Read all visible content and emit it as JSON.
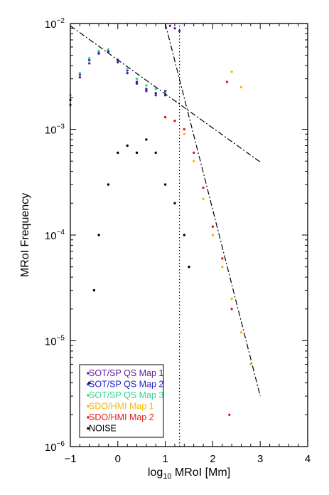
{
  "chart_data": {
    "type": "scatter",
    "xlabel_prefix": "log",
    "xlabel_sub": "10",
    "xlabel_suffix": " MRoI [Mm]",
    "ylabel": "MRoI Frequency",
    "xlim": [
      -1,
      4
    ],
    "ylim": [
      1e-06,
      0.01
    ],
    "yscale": "log",
    "x_ticks": [
      -1,
      0,
      1,
      2,
      3,
      4
    ],
    "x_tick_labels": [
      "−1",
      "0",
      "1",
      "2",
      "3",
      "4"
    ],
    "y_ticks": [
      {
        "mantissa": "10",
        "exponent": "−6",
        "value": 1e-06
      },
      {
        "mantissa": "10",
        "exponent": "−5",
        "value": 1e-05
      },
      {
        "mantissa": "10",
        "exponent": "−4",
        "value": 0.0001
      },
      {
        "mantissa": "10",
        "exponent": "−3",
        "value": 0.001
      },
      {
        "mantissa": "10",
        "exponent": "−2",
        "value": 0.01
      }
    ],
    "grid": false,
    "legend_position": "bottom-left",
    "series": [
      {
        "name": "SOT/SP QS Map 1",
        "color": "#6a1a9a",
        "points": [
          [
            -1.0,
            0.0017
          ],
          [
            -0.8,
            0.0031
          ],
          [
            -0.6,
            0.0042
          ],
          [
            -0.4,
            0.0052
          ],
          [
            -0.2,
            0.0054
          ],
          [
            0.0,
            0.0043
          ],
          [
            0.2,
            0.0034
          ],
          [
            0.4,
            0.0027
          ],
          [
            0.6,
            0.0023
          ],
          [
            0.8,
            0.0021
          ],
          [
            1.0,
            0.0023
          ],
          [
            1.1,
            0.0095
          ],
          [
            1.2,
            0.009
          ],
          [
            1.3,
            0.0085
          ]
        ]
      },
      {
        "name": "SOT/SP QS Map 2",
        "color": "#2020c8",
        "points": [
          [
            -1.0,
            0.0019
          ],
          [
            -0.8,
            0.0033
          ],
          [
            -0.6,
            0.0045
          ],
          [
            -0.4,
            0.0054
          ],
          [
            -0.2,
            0.0055
          ],
          [
            0.0,
            0.0045
          ],
          [
            0.2,
            0.0036
          ],
          [
            0.4,
            0.0028
          ],
          [
            0.6,
            0.0024
          ],
          [
            0.8,
            0.0022
          ],
          [
            1.0,
            0.0021
          ]
        ]
      },
      {
        "name": "SOT/SP QS Map 3",
        "color": "#30d890",
        "points": [
          [
            -1.0,
            0.0021
          ],
          [
            -0.8,
            0.0034
          ],
          [
            -0.6,
            0.0047
          ],
          [
            -0.4,
            0.0055
          ],
          [
            -0.2,
            0.0057
          ],
          [
            0.0,
            0.0046
          ],
          [
            0.2,
            0.0037
          ],
          [
            0.4,
            0.003
          ],
          [
            0.6,
            0.0026
          ],
          [
            0.8,
            0.0024
          ],
          [
            1.0,
            0.0022
          ]
        ]
      },
      {
        "name": "SDO/HMI Map 1",
        "color": "#f8b800",
        "points": [
          [
            1.0,
            0.0013
          ],
          [
            1.2,
            0.0012
          ],
          [
            1.4,
            0.0009
          ],
          [
            1.6,
            0.0005
          ],
          [
            1.8,
            0.00022
          ],
          [
            2.0,
            0.0001
          ],
          [
            2.2,
            5e-05
          ],
          [
            2.4,
            2.5e-05
          ],
          [
            2.6,
            1.2e-05
          ],
          [
            2.8,
            6e-06
          ],
          [
            2.4,
            0.0035
          ],
          [
            2.6,
            0.0025
          ]
        ]
      },
      {
        "name": "SDO/HMI Map 2",
        "color": "#e81818",
        "points": [
          [
            1.0,
            0.0013
          ],
          [
            1.2,
            0.0012
          ],
          [
            1.4,
            0.001
          ],
          [
            1.6,
            0.0006
          ],
          [
            1.8,
            0.00028
          ],
          [
            2.0,
            0.00012
          ],
          [
            2.2,
            6e-05
          ],
          [
            2.4,
            2e-05
          ],
          [
            2.35,
            2e-06
          ],
          [
            2.3,
            0.0028
          ]
        ]
      },
      {
        "name": "NOISE",
        "color": "#000000",
        "points": [
          [
            -0.6,
            4e-06
          ],
          [
            -0.5,
            3e-05
          ],
          [
            -0.4,
            0.0001
          ],
          [
            -0.2,
            0.0003
          ],
          [
            0.0,
            0.0006
          ],
          [
            0.2,
            0.0007
          ],
          [
            0.4,
            0.0006
          ],
          [
            0.6,
            0.0008
          ],
          [
            0.8,
            0.0006
          ],
          [
            1.0,
            0.0003
          ],
          [
            1.2,
            0.0002
          ],
          [
            1.4,
            0.0001
          ],
          [
            1.5,
            5e-05
          ]
        ]
      }
    ],
    "reference_lines": [
      {
        "style": "dash-dot",
        "points": [
          [
            -1,
            0.0095
          ],
          [
            3,
            0.00049
          ]
        ]
      },
      {
        "style": "dash-dot",
        "points": [
          [
            1.0,
            0.01
          ],
          [
            3,
            3e-06
          ]
        ]
      },
      {
        "style": "dotted",
        "points": [
          [
            1.3,
            1e-06
          ],
          [
            1.3,
            0.01
          ]
        ]
      }
    ]
  }
}
